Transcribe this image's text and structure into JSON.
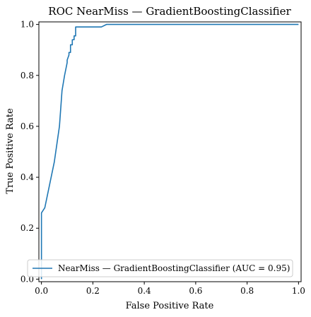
{
  "chart_data": {
    "type": "line",
    "title": "ROC NearMiss — GradientBoostingClassifier",
    "xlabel": "False Positive Rate",
    "ylabel": "True Positive Rate",
    "xlim": [
      -0.01,
      1.01
    ],
    "ylim": [
      -0.01,
      1.01
    ],
    "xticks": [
      0.0,
      0.2,
      0.4,
      0.6,
      0.8,
      1.0
    ],
    "yticks": [
      0.0,
      0.2,
      0.4,
      0.6,
      0.8,
      1.0
    ],
    "xtick_labels": [
      "0.0",
      "0.2",
      "0.4",
      "0.6",
      "0.8",
      "1.0"
    ],
    "ytick_labels": [
      "0.0",
      "0.2",
      "0.4",
      "0.6",
      "0.8",
      "1.0"
    ],
    "grid": false,
    "legend_position": "lower-right",
    "series": [
      {
        "name": "NearMiss — GradientBoostingClassifier (AUC = 0.95)",
        "color": "#1f77b4",
        "x": [
          0.0,
          0.0,
          0.0,
          0.0,
          0.0,
          0.013,
          0.013,
          0.05,
          0.07,
          0.08,
          0.09,
          0.1,
          0.1,
          0.107,
          0.107,
          0.113,
          0.113,
          0.12,
          0.12,
          0.127,
          0.127,
          0.133,
          0.133,
          0.153,
          0.233,
          0.253,
          0.253,
          1.0
        ],
        "y": [
          0.0,
          0.07,
          0.12,
          0.2,
          0.26,
          0.28,
          0.28,
          0.46,
          0.6,
          0.74,
          0.8,
          0.85,
          0.86,
          0.88,
          0.89,
          0.89,
          0.92,
          0.92,
          0.94,
          0.94,
          0.955,
          0.955,
          0.99,
          0.99,
          0.99,
          1.0,
          1.0,
          1.0
        ]
      }
    ]
  }
}
